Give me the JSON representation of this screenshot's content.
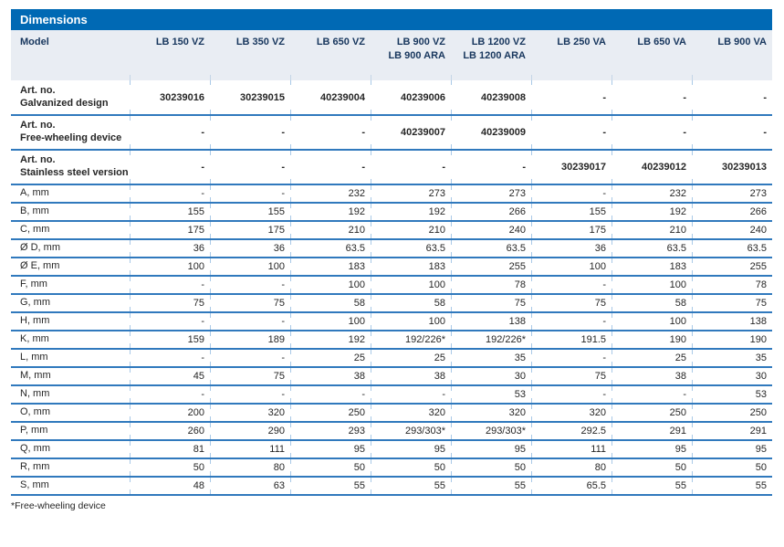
{
  "title": "Dimensions",
  "footnote": "*Free-wheeling device",
  "table": {
    "model_label": "Model",
    "columns": [
      "LB 150 VZ",
      "LB 350 VZ",
      "LB 650 VZ",
      "LB 900 VZ\nLB 900 ARA",
      "LB 1200 VZ\nLB 1200 ARA",
      "LB 250 VA",
      "LB 650 VA",
      "LB 900 VA"
    ],
    "rows": [
      {
        "label": "Art. no.\nGalvanized design",
        "bold": true,
        "values": [
          "30239016",
          "30239015",
          "40239004",
          "40239006",
          "40239008",
          "-",
          "-",
          "-"
        ]
      },
      {
        "label": "Art. no.\nFree-wheeling device",
        "bold": true,
        "values": [
          "-",
          "-",
          "-",
          "40239007",
          "40239009",
          "-",
          "-",
          "-"
        ]
      },
      {
        "label": "Art. no.\nStainless steel version",
        "bold": true,
        "values": [
          "-",
          "-",
          "-",
          "-",
          "-",
          "30239017",
          "40239012",
          "30239013"
        ]
      },
      {
        "label": "A, mm",
        "bold": false,
        "values": [
          "-",
          "-",
          "232",
          "273",
          "273",
          "-",
          "232",
          "273"
        ]
      },
      {
        "label": "B, mm",
        "bold": false,
        "values": [
          "155",
          "155",
          "192",
          "192",
          "266",
          "155",
          "192",
          "266"
        ]
      },
      {
        "label": "C, mm",
        "bold": false,
        "values": [
          "175",
          "175",
          "210",
          "210",
          "240",
          "175",
          "210",
          "240"
        ]
      },
      {
        "label": "Ø D, mm",
        "bold": false,
        "values": [
          "36",
          "36",
          "63.5",
          "63.5",
          "63.5",
          "36",
          "63.5",
          "63.5"
        ]
      },
      {
        "label": "Ø E, mm",
        "bold": false,
        "values": [
          "100",
          "100",
          "183",
          "183",
          "255",
          "100",
          "183",
          "255"
        ]
      },
      {
        "label": "F, mm",
        "bold": false,
        "values": [
          "-",
          "-",
          "100",
          "100",
          "78",
          "-",
          "100",
          "78"
        ]
      },
      {
        "label": "G, mm",
        "bold": false,
        "values": [
          "75",
          "75",
          "58",
          "58",
          "75",
          "75",
          "58",
          "75"
        ]
      },
      {
        "label": "H, mm",
        "bold": false,
        "values": [
          "-",
          "-",
          "100",
          "100",
          "138",
          "-",
          "100",
          "138"
        ]
      },
      {
        "label": "K, mm",
        "bold": false,
        "values": [
          "159",
          "189",
          "192",
          "192/226*",
          "192/226*",
          "191.5",
          "190",
          "190"
        ]
      },
      {
        "label": "L, mm",
        "bold": false,
        "values": [
          "-",
          "-",
          "25",
          "25",
          "35",
          "-",
          "25",
          "35"
        ]
      },
      {
        "label": "M, mm",
        "bold": false,
        "values": [
          "45",
          "75",
          "38",
          "38",
          "30",
          "75",
          "38",
          "30"
        ]
      },
      {
        "label": "N, mm",
        "bold": false,
        "values": [
          "-",
          "-",
          "-",
          "-",
          "53",
          "-",
          "-",
          "53"
        ]
      },
      {
        "label": "O, mm",
        "bold": false,
        "values": [
          "200",
          "320",
          "250",
          "320",
          "320",
          "320",
          "250",
          "250"
        ]
      },
      {
        "label": "P, mm",
        "bold": false,
        "values": [
          "260",
          "290",
          "293",
          "293/303*",
          "293/303*",
          "292.5",
          "291",
          "291"
        ]
      },
      {
        "label": "Q, mm",
        "bold": false,
        "values": [
          "81",
          "111",
          "95",
          "95",
          "95",
          "111",
          "95",
          "95"
        ]
      },
      {
        "label": "R, mm",
        "bold": false,
        "values": [
          "50",
          "80",
          "50",
          "50",
          "50",
          "80",
          "50",
          "50"
        ]
      },
      {
        "label": "S, mm",
        "bold": false,
        "values": [
          "48",
          "63",
          "55",
          "55",
          "55",
          "65.5",
          "55",
          "55"
        ]
      }
    ]
  },
  "colors": {
    "title_bar": "#0069b4",
    "header_bg": "#e9edf3",
    "header_text": "#17365d",
    "row_separator": "#3079bd",
    "column_tick": "#a9c9e7",
    "body_text": "#262626"
  }
}
